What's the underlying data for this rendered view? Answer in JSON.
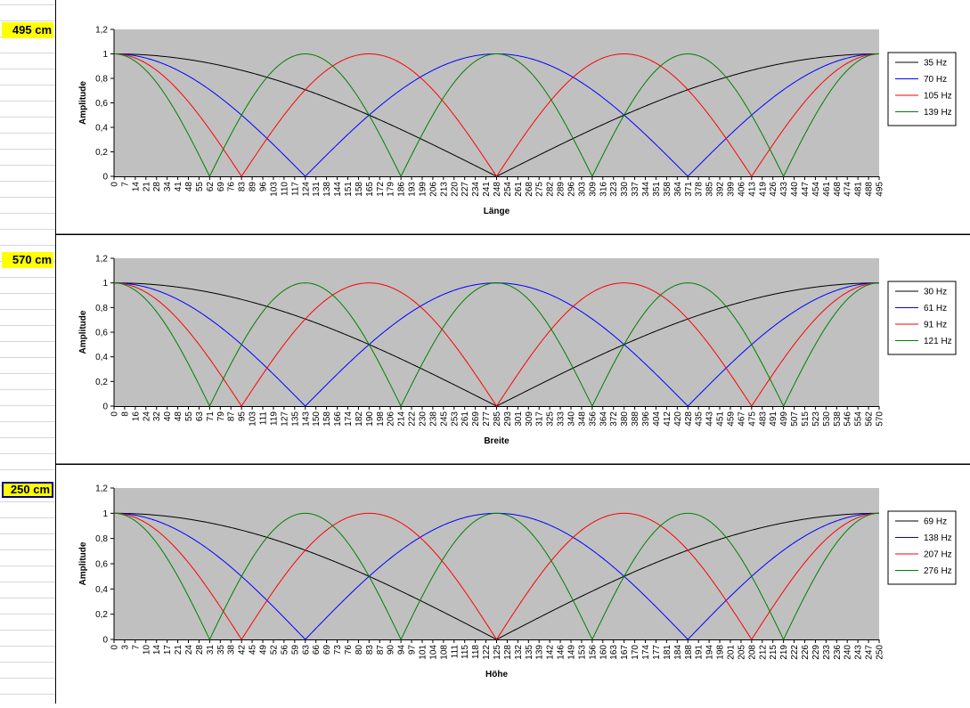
{
  "labels": [
    "495 cm",
    "570 cm",
    "250 cm"
  ],
  "colors": {
    "black": "#000000",
    "blue": "#0000ff",
    "red": "#ff0000",
    "green": "#008000",
    "plot_bg": "#c0c0c0"
  },
  "chart_data": [
    {
      "type": "line",
      "xlabel": "Länge",
      "ylabel": "Amplitude",
      "xlim": [
        0,
        495
      ],
      "ylim": [
        0,
        1.2
      ],
      "yticks": [
        "0",
        "0,2",
        "0,4",
        "0,6",
        "0,8",
        "1",
        "1,2"
      ],
      "xticks": [
        "0",
        "7",
        "14",
        "21",
        "28",
        "34",
        "41",
        "48",
        "55",
        "62",
        "69",
        "76",
        "83",
        "89",
        "96",
        "103",
        "110",
        "117",
        "124",
        "131",
        "138",
        "144",
        "151",
        "158",
        "165",
        "172",
        "179",
        "186",
        "193",
        "199",
        "206",
        "213",
        "220",
        "227",
        "234",
        "241",
        "248",
        "254",
        "261",
        "268",
        "275",
        "282",
        "289",
        "296",
        "303",
        "309",
        "316",
        "323",
        "330",
        "337",
        "344",
        "351",
        "358",
        "364",
        "371",
        "378",
        "385",
        "392",
        "399",
        "406",
        "413",
        "419",
        "426",
        "433",
        "440",
        "447",
        "454",
        "461",
        "468",
        "474",
        "481",
        "488",
        "495"
      ],
      "series": [
        {
          "name": "35 Hz",
          "color": "#000000",
          "order": 1
        },
        {
          "name": "70 Hz",
          "color": "#0000ff",
          "order": 2
        },
        {
          "name": "105 Hz",
          "color": "#ff0000",
          "order": 3
        },
        {
          "name": "139 Hz",
          "color": "#008000",
          "order": 4
        }
      ]
    },
    {
      "type": "line",
      "xlabel": "Breite",
      "ylabel": "Amplitude",
      "xlim": [
        0,
        570
      ],
      "ylim": [
        0,
        1.2
      ],
      "yticks": [
        "0",
        "0,2",
        "0,4",
        "0,6",
        "0,8",
        "1",
        "1,2"
      ],
      "xticks": [
        "0",
        "8",
        "16",
        "24",
        "32",
        "40",
        "48",
        "55",
        "63",
        "71",
        "79",
        "87",
        "95",
        "103",
        "111",
        "119",
        "127",
        "135",
        "143",
        "150",
        "158",
        "166",
        "174",
        "182",
        "190",
        "198",
        "206",
        "214",
        "222",
        "230",
        "238",
        "245",
        "253",
        "261",
        "269",
        "277",
        "285",
        "293",
        "301",
        "309",
        "317",
        "325",
        "333",
        "340",
        "348",
        "356",
        "364",
        "372",
        "380",
        "388",
        "396",
        "404",
        "412",
        "420",
        "428",
        "435",
        "443",
        "451",
        "459",
        "467",
        "475",
        "483",
        "491",
        "499",
        "507",
        "515",
        "523",
        "530",
        "538",
        "546",
        "554",
        "562",
        "570"
      ],
      "series": [
        {
          "name": "30 Hz",
          "color": "#000000",
          "order": 1
        },
        {
          "name": "61 Hz",
          "color": "#0000ff",
          "order": 2
        },
        {
          "name": "91 Hz",
          "color": "#ff0000",
          "order": 3
        },
        {
          "name": "121 Hz",
          "color": "#008000",
          "order": 4
        }
      ]
    },
    {
      "type": "line",
      "xlabel": "Höhe",
      "ylabel": "Amplitude",
      "xlim": [
        0,
        250
      ],
      "ylim": [
        0,
        1.2
      ],
      "yticks": [
        "0",
        "0,2",
        "0,4",
        "0,6",
        "0,8",
        "1",
        "1,2"
      ],
      "xticks": [
        "0",
        "3",
        "7",
        "10",
        "14",
        "17",
        "21",
        "24",
        "28",
        "31",
        "35",
        "38",
        "42",
        "45",
        "49",
        "52",
        "56",
        "59",
        "63",
        "66",
        "69",
        "73",
        "76",
        "80",
        "83",
        "87",
        "90",
        "94",
        "97",
        "101",
        "104",
        "108",
        "111",
        "115",
        "118",
        "122",
        "125",
        "128",
        "132",
        "135",
        "139",
        "142",
        "146",
        "149",
        "153",
        "156",
        "160",
        "163",
        "167",
        "170",
        "174",
        "177",
        "181",
        "184",
        "188",
        "191",
        "194",
        "198",
        "201",
        "205",
        "208",
        "212",
        "215",
        "219",
        "222",
        "226",
        "229",
        "233",
        "236",
        "240",
        "243",
        "247",
        "250"
      ],
      "series": [
        {
          "name": "69 Hz",
          "color": "#000000",
          "order": 1
        },
        {
          "name": "138 Hz",
          "color": "#0000ff",
          "order": 2
        },
        {
          "name": "207 Hz",
          "color": "#ff0000",
          "order": 3
        },
        {
          "name": "276 Hz",
          "color": "#008000",
          "order": 4
        }
      ]
    }
  ]
}
